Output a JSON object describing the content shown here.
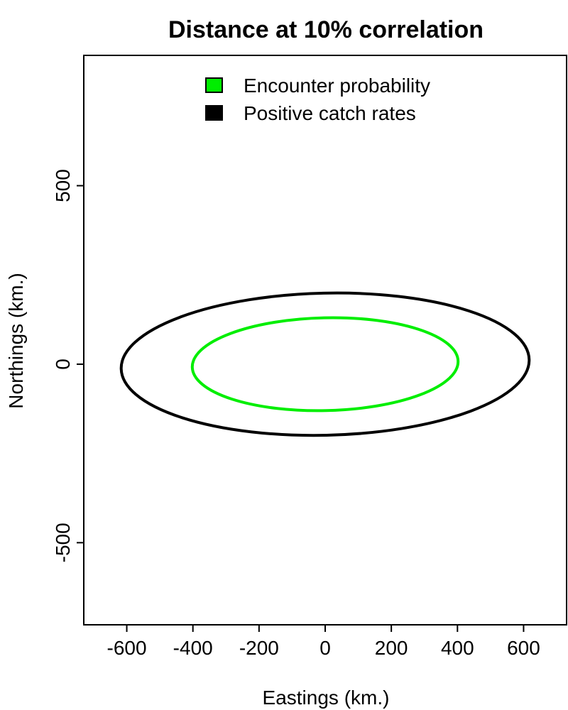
{
  "chart_data": {
    "type": "line",
    "title": "Distance at 10% correlation",
    "xlabel": "Eastings (km.)",
    "ylabel": "Northings (km.)",
    "xlim": [
      -730,
      730
    ],
    "ylim": [
      -730,
      865
    ],
    "x_ticks": [
      -600,
      -400,
      -200,
      0,
      200,
      400,
      600
    ],
    "x_tick_labels": [
      "-600",
      "-400",
      "-200",
      "0",
      "200",
      "400",
      "600"
    ],
    "y_ticks": [
      -500,
      0,
      500
    ],
    "y_tick_labels": [
      "-500",
      "0",
      "500"
    ],
    "grid": false,
    "legend": {
      "position": "top",
      "frame": false
    },
    "series": [
      {
        "name": "Encounter probability",
        "color": "#00ee00",
        "shape": "ellipse",
        "center": [
          0,
          0
        ],
        "semi_axis_x": 402,
        "semi_axis_y": 130,
        "rotation_deg": 1.3
      },
      {
        "name": "Positive catch rates",
        "color": "#000000",
        "shape": "ellipse",
        "center": [
          0,
          0
        ],
        "semi_axis_x": 617,
        "semi_axis_y": 199,
        "rotation_deg": 1.3
      }
    ]
  }
}
